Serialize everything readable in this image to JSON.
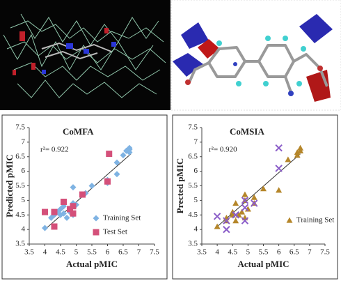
{
  "chart_data": [
    {
      "type": "scatter",
      "title": "CoMFA",
      "annotation": "r²= 0.922",
      "x_label": "Actual pMIC",
      "y_label": "Predicted pMIC",
      "xlim": [
        3.5,
        7.5
      ],
      "ylim": [
        3.5,
        7.5
      ],
      "xticks": [
        3.5,
        4,
        4.5,
        5,
        5.5,
        6,
        6.5,
        7,
        7.5
      ],
      "yticks": [
        3.5,
        4,
        4.5,
        5,
        5.5,
        6,
        6.5,
        7,
        7.5
      ],
      "series": [
        {
          "name": "Training Set",
          "color": "#7fb3e3",
          "marker": "diamond",
          "x": [
            4.0,
            4.2,
            4.3,
            4.4,
            4.5,
            4.5,
            4.6,
            4.6,
            4.7,
            4.8,
            4.9,
            4.9,
            4.9,
            5.0,
            5.3,
            5.5,
            6.0,
            6.0,
            6.3,
            6.3,
            6.5,
            6.6,
            6.7,
            6.7,
            6.7
          ],
          "values": [
            4.05,
            4.4,
            4.5,
            4.6,
            4.5,
            4.7,
            4.8,
            4.55,
            4.4,
            4.6,
            4.5,
            5.45,
            4.9,
            4.85,
            5.25,
            5.5,
            5.6,
            5.7,
            5.9,
            6.3,
            6.55,
            6.7,
            6.8,
            6.75,
            6.65
          ]
        },
        {
          "name": "Test Set",
          "color": "#d4507a",
          "marker": "square",
          "x": [
            4.0,
            4.3,
            4.3,
            4.6,
            4.8,
            4.9,
            4.9,
            5.2,
            6.0,
            6.05
          ],
          "values": [
            4.6,
            4.6,
            4.1,
            4.95,
            4.7,
            4.8,
            4.55,
            5.2,
            5.65,
            6.6
          ]
        }
      ],
      "fit_line": {
        "color": "#333333",
        "x": [
          4.0,
          6.75
        ],
        "y": [
          4.0,
          6.6
        ]
      }
    },
    {
      "type": "scatter",
      "title": "CoMSIA",
      "annotation": "r²= 0.920",
      "x_label": "Actual pMIC",
      "y_label": "Prected pMIC",
      "xlim": [
        3.5,
        7.5
      ],
      "ylim": [
        3.5,
        7.5
      ],
      "xticks": [
        3.5,
        4,
        4.5,
        5,
        5.5,
        6,
        6.5,
        7,
        7.5
      ],
      "yticks": [
        3.5,
        4,
        4.5,
        5,
        5.5,
        6,
        6.5,
        7,
        7.5
      ],
      "series": [
        {
          "name": "Training Set",
          "color": "#b5862a",
          "marker": "triangle",
          "x": [
            4.0,
            4.3,
            4.3,
            4.5,
            4.5,
            4.6,
            4.6,
            4.7,
            4.8,
            4.9,
            4.9,
            4.9,
            5.0,
            5.2,
            5.2,
            5.5,
            6.0,
            6.3,
            6.6,
            6.7,
            6.7,
            6.6
          ],
          "values": [
            4.1,
            4.3,
            4.4,
            4.5,
            4.6,
            4.3,
            4.9,
            4.5,
            4.6,
            4.4,
            5.2,
            5.0,
            4.7,
            4.9,
            5.1,
            5.4,
            5.35,
            6.4,
            6.55,
            6.8,
            6.7,
            6.65
          ]
        },
        {
          "color": "#8a5cc8",
          "marker": "x",
          "x": [
            4.0,
            4.3,
            4.3,
            4.6,
            4.9,
            4.9,
            4.9,
            5.2,
            6.0,
            6.0
          ],
          "values": [
            4.45,
            4.0,
            4.3,
            4.5,
            4.3,
            4.75,
            5.0,
            4.9,
            6.8,
            6.1
          ]
        }
      ],
      "fit_line": {
        "color": "#333333",
        "x": [
          4.0,
          6.7
        ],
        "y": [
          4.1,
          6.6
        ]
      }
    }
  ]
}
